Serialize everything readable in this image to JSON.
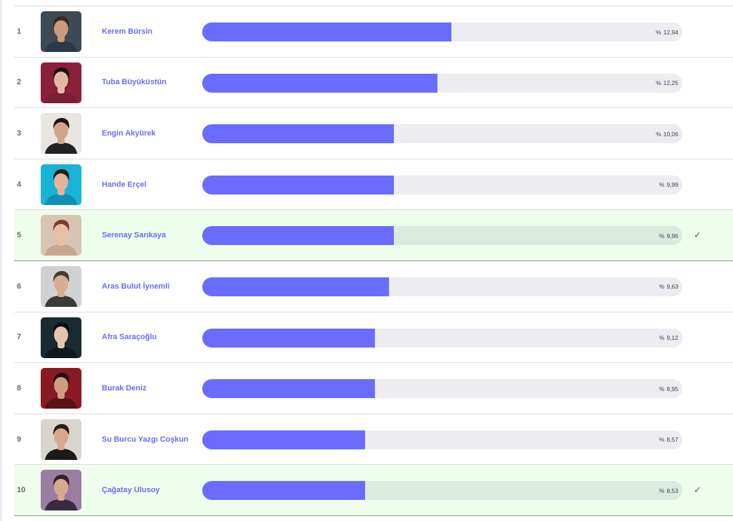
{
  "percent_prefix": "%",
  "check_glyph": "✓",
  "colors": {
    "bar_fill": "#6a6cff",
    "bar_track": "#ececf1",
    "selected_row_bg": "#effdec",
    "name_text": "#6a6cf6"
  },
  "rows": [
    {
      "rank": "1",
      "name": "Kerem Bürsin",
      "percent": "12,94",
      "fill": 0.519,
      "selected": false,
      "avatar": {
        "bg": "#3d4a55",
        "skin": "#c99a7c",
        "hair": "#3a2a20",
        "shirt": "#2a3a4a"
      }
    },
    {
      "rank": "2",
      "name": "Tuba Büyüküstün",
      "percent": "12,25",
      "fill": 0.49,
      "selected": false,
      "avatar": {
        "bg": "#8a1f3a",
        "skin": "#e2b9a4",
        "hair": "#1c1412",
        "shirt": "#7a1f35"
      }
    },
    {
      "rank": "3",
      "name": "Engin Akyürek",
      "percent": "10,06",
      "fill": 0.399,
      "selected": false,
      "avatar": {
        "bg": "#e9e6e1",
        "skin": "#d3a48a",
        "hair": "#1d1714",
        "shirt": "#222222"
      }
    },
    {
      "rank": "4",
      "name": "Hande Erçel",
      "percent": "9,99",
      "fill": 0.399,
      "selected": false,
      "avatar": {
        "bg": "#18b4d6",
        "skin": "#e4b59a",
        "hair": "#2a1c16",
        "shirt": "#0f8fb3"
      }
    },
    {
      "rank": "5",
      "name": "Serenay Sarıkaya",
      "percent": "9,96",
      "fill": 0.399,
      "selected": true,
      "avatar": {
        "bg": "#d9c4b4",
        "skin": "#e8c0a6",
        "hair": "#7a3e2a",
        "shirt": "#c8a690"
      }
    },
    {
      "rank": "6",
      "name": "Aras Bulut İynemli",
      "percent": "9,63",
      "fill": 0.389,
      "selected": false,
      "avatar": {
        "bg": "#cfd1d3",
        "skin": "#d8ae94",
        "hair": "#4a3a30",
        "shirt": "#3a3a3a"
      }
    },
    {
      "rank": "7",
      "name": "Afra Saraçoğlu",
      "percent": "9,12",
      "fill": 0.359,
      "selected": false,
      "avatar": {
        "bg": "#1a2a30",
        "skin": "#e6c4b0",
        "hair": "#0e0e10",
        "shirt": "#101820"
      }
    },
    {
      "rank": "8",
      "name": "Burak Deniz",
      "percent": "8,95",
      "fill": 0.359,
      "selected": false,
      "avatar": {
        "bg": "#8a1a22",
        "skin": "#cf9e80",
        "hair": "#1d1410",
        "shirt": "#5a1218"
      }
    },
    {
      "rank": "9",
      "name": "Su Burcu Yazgı Coşkun",
      "percent": "8,57",
      "fill": 0.339,
      "selected": false,
      "avatar": {
        "bg": "#d9d4cd",
        "skin": "#d8a88c",
        "hair": "#2a1c16",
        "shirt": "#1a1a1a"
      }
    },
    {
      "rank": "10",
      "name": "Çağatay Ulusoy",
      "percent": "8,53",
      "fill": 0.339,
      "selected": true,
      "avatar": {
        "bg": "#9a7ea0",
        "skin": "#d6a88e",
        "hair": "#2e2420",
        "shirt": "#3a2a40"
      }
    }
  ]
}
